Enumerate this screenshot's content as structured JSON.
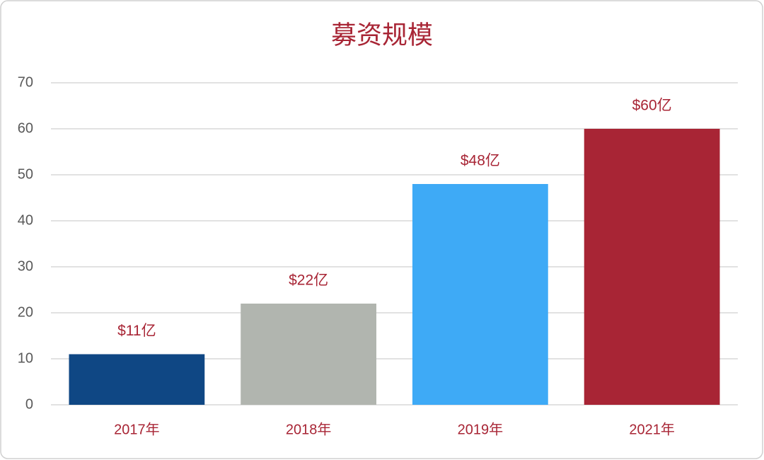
{
  "chart_data": {
    "type": "bar",
    "title": "募资规模",
    "categories": [
      "2017年",
      "2018年",
      "2019年",
      "2021年"
    ],
    "values": [
      11,
      22,
      48,
      60
    ],
    "value_labels": [
      "$11亿",
      "$22亿",
      "$48亿",
      "$60亿"
    ],
    "colors": [
      "#0f4784",
      "#b1b5af",
      "#3eaaf6",
      "#a82535"
    ],
    "ylim": [
      0,
      70
    ],
    "yticks": [
      0,
      10,
      20,
      30,
      40,
      50,
      60,
      70
    ],
    "grid": true
  }
}
